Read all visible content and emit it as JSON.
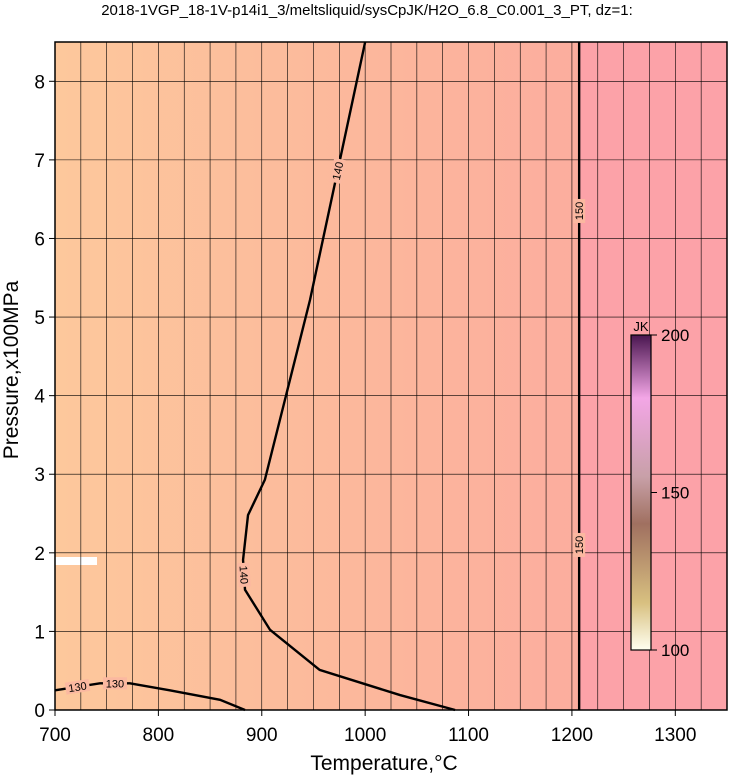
{
  "chart_data": {
    "type": "contour",
    "title": "2018-1VGP_18-1V-p14i1_3/meltsliquid/sysCpJK/H2O_6.8_C0.001_3_PT, dz=1:",
    "x_label": "Temperature,°C",
    "y_label": "Pressure,x100MPa",
    "xlim": [
      700,
      1350
    ],
    "ylim": [
      0,
      8.5
    ],
    "xticks": [
      700,
      800,
      900,
      1000,
      1100,
      1200,
      1300
    ],
    "yticks": [
      0,
      1,
      2,
      3,
      4,
      5,
      6,
      7,
      8
    ],
    "xminorticks": [
      725,
      750,
      775,
      825,
      850,
      875,
      925,
      950,
      975,
      1025,
      1050,
      1075,
      1125,
      1150,
      1175,
      1225,
      1250,
      1275,
      1325
    ],
    "grid": true,
    "contours": [
      {
        "level": 130,
        "bold": true,
        "x": [
          700,
          743.5,
          772.5,
          811,
          859.6,
          883.8
        ],
        "y": [
          0.25,
          0.34,
          0.34,
          0.25,
          0.13,
          0
        ]
      },
      {
        "level": 140,
        "bold": true,
        "x": [
          1000,
          946.7,
          903,
          886.7,
          881.9,
          883.8,
          908,
          956,
          1033.7,
          1087
        ],
        "y": [
          8.5,
          5.22,
          2.93,
          2.48,
          1.91,
          1.53,
          1.02,
          0.51,
          0.19,
          0
        ]
      },
      {
        "level": 150,
        "bold": true,
        "x": [
          1207,
          1207,
          1207
        ],
        "y": [
          0,
          4.2,
          8.5
        ]
      }
    ],
    "colorbar": {
      "label": "JK",
      "lim": [
        100,
        200
      ],
      "ticks": [
        100,
        150,
        200
      ]
    }
  }
}
